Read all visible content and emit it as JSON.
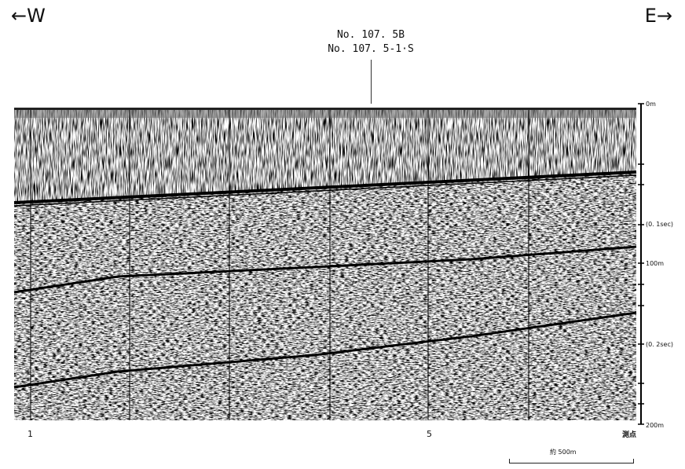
{
  "directions": {
    "west": "←W",
    "east": "E→"
  },
  "callout": {
    "line1": "No. 107. 5B",
    "line2": "No. 107. 5-1·S"
  },
  "depth_labels": {
    "d0": "0m",
    "sec01": "(0. 1sec)",
    "d100": "100m",
    "sec02": "(0. 2sec)",
    "d200": "200m"
  },
  "stations": {
    "first": "1",
    "fifth": "5",
    "unit": "測点"
  },
  "scale": {
    "label": "約 500m"
  },
  "colors": {
    "ink": "#1a1a1a",
    "background": "#ffffff"
  }
}
